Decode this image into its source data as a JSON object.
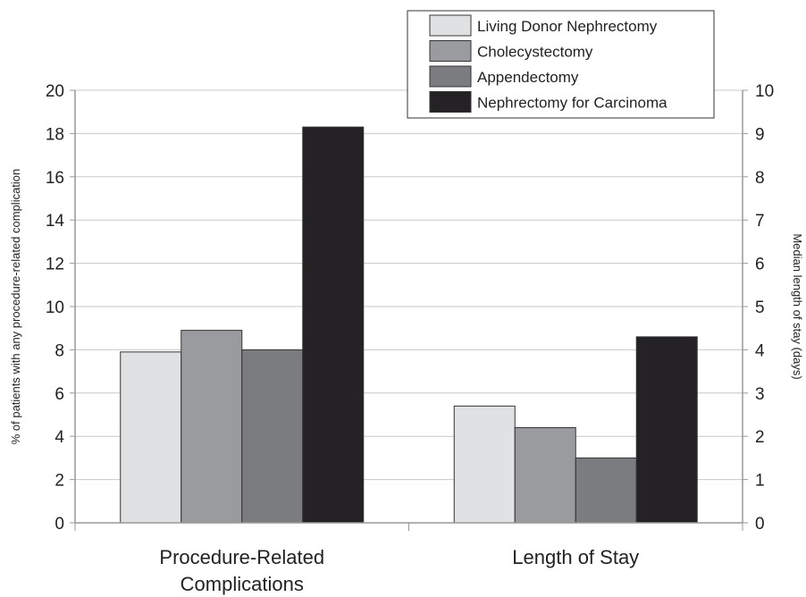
{
  "chart_data": {
    "type": "bar",
    "categories": [
      "Procedure-Related Complications",
      "Length of Stay"
    ],
    "category_lines": [
      [
        "Procedure-Related",
        "Complications"
      ],
      [
        "Length of Stay"
      ]
    ],
    "series": [
      {
        "name": "Living Donor Nephrectomy",
        "color": "#e0e1e3",
        "values": [
          7.9,
          2.7
        ]
      },
      {
        "name": "Cholecystectomy",
        "color": "#9a9b9e",
        "values": [
          8.9,
          2.2
        ]
      },
      {
        "name": "Appendectomy",
        "color": "#7b7c80",
        "values": [
          8.0,
          1.5
        ]
      },
      {
        "name": "Nephrectomy for Carcinoma",
        "color": "#242225",
        "values": [
          18.3,
          4.3
        ]
      }
    ],
    "value_axis": [
      "left",
      "right"
    ],
    "ylabel_left": "% of patients with any procedure-related complication",
    "ylabel_right": "Median length of stay (days)",
    "ylim_left": [
      0,
      20
    ],
    "ylim_right": [
      0,
      10
    ],
    "yticks_left": [
      0,
      2,
      4,
      6,
      8,
      10,
      12,
      14,
      16,
      18,
      20
    ],
    "yticks_right": [
      0,
      1,
      2,
      3,
      4,
      5,
      6,
      7,
      8,
      9,
      10
    ],
    "grid": true,
    "legend_position": "top-right"
  }
}
